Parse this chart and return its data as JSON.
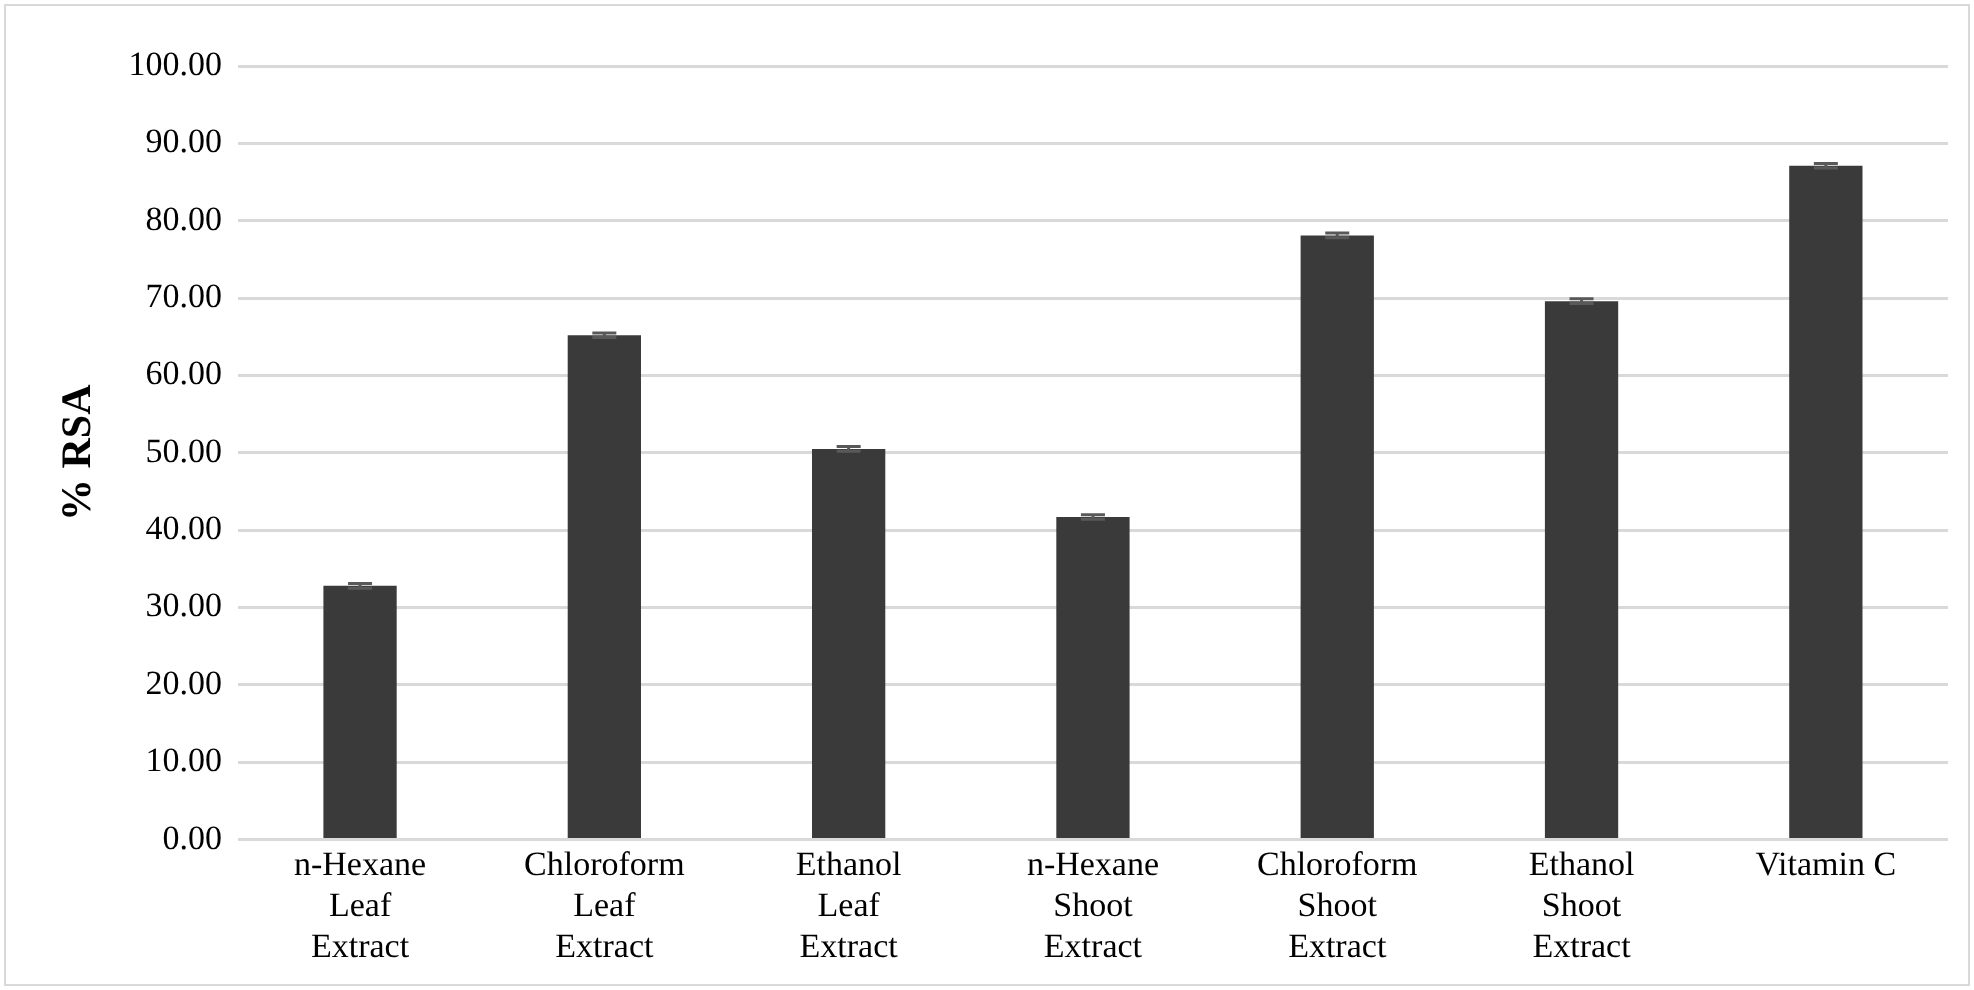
{
  "chart_data": {
    "type": "bar",
    "ylabel": "% RSA",
    "categories": [
      "n-Hexane Leaf Extract",
      "Chloroform Leaf Extract",
      "Ethanol Leaf Extract",
      "n-Hexane Shoot Extract",
      "Chloroform Shoot Extract",
      "Ethanol Shoot Extract",
      "Vitamin C"
    ],
    "values": [
      32.8,
      65.2,
      50.5,
      41.7,
      78.1,
      69.6,
      87.1
    ],
    "errors": [
      0.3,
      0.3,
      0.3,
      0.3,
      0.3,
      0.3,
      0.3
    ],
    "color": "#3a3a3a",
    "ylim": [
      0,
      100
    ],
    "yticks": [
      {
        "value": 0,
        "label": "0.00"
      },
      {
        "value": 10,
        "label": "10.00"
      },
      {
        "value": 20,
        "label": "20.00"
      },
      {
        "value": 30,
        "label": "30.00"
      },
      {
        "value": 40,
        "label": "40.00"
      },
      {
        "value": 50,
        "label": "50.00"
      },
      {
        "value": 60,
        "label": "60.00"
      },
      {
        "value": 70,
        "label": "70.00"
      },
      {
        "value": 80,
        "label": "80.00"
      },
      {
        "value": 90,
        "label": "90.00"
      },
      {
        "value": 100,
        "label": "100.00"
      }
    ],
    "grid": "y",
    "legend": false
  }
}
